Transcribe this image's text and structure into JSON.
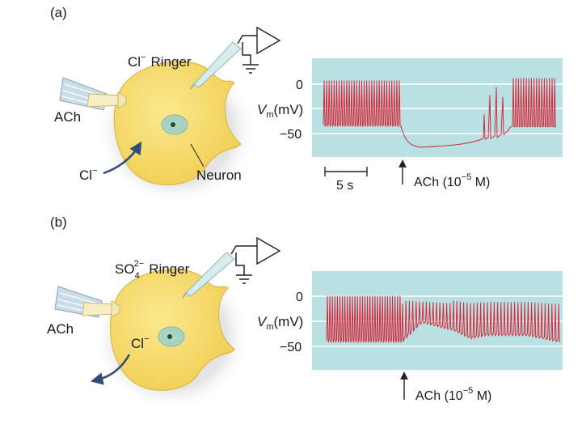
{
  "panels": [
    {
      "letter": "(a)",
      "ringer_main": "Cl",
      "ringer_sup": "−",
      "ringer_sub": "",
      "ringer_suffix": "Ringer",
      "ach_label": "ACh",
      "ion_label": "Cl",
      "ion_sup": "−",
      "neuron_label": "Neuron",
      "ion_direction": "inward",
      "ylabel_v": "V",
      "ylabel_sub": "m",
      "ylabel_unit": "(mV)",
      "ytick_0": "0",
      "ytick_50": "−50",
      "scalebar_label": "5 s",
      "ach_marker_prefix": "ACh (10",
      "ach_marker_sup": "−5",
      "ach_marker_suffix": " M)",
      "trace_color": "#d42a3c",
      "trace_description": "Resting near -40 mV with repetitive spikes to 0 mV; ACh application hyperpolarizes the membrane to about -72 mV and silences firing; slow recovery with spiking resuming later."
    },
    {
      "letter": "(b)",
      "ringer_main": "SO",
      "ringer_sup": "2−",
      "ringer_sub": "4",
      "ringer_suffix": "Ringer",
      "ach_label": "ACh",
      "ion_label": "Cl",
      "ion_sup": "−",
      "neuron_label": "",
      "ion_direction": "outward",
      "ylabel_v": "V",
      "ylabel_sub": "m",
      "ylabel_unit": "(mV)",
      "ytick_0": "0",
      "ytick_50": "−50",
      "scalebar_label": "",
      "ach_marker_prefix": "ACh (10",
      "ach_marker_sup": "−5",
      "ach_marker_suffix": " M)",
      "trace_color": "#d42a3c",
      "trace_description": "Resting near -40 mV with repetitive spikes; ACh application depolarizes the membrane baseline to about -25 mV while spiking continues."
    }
  ],
  "colors": {
    "plot_bg": "#b9e0e2",
    "gridline": "#ffffff",
    "cell_fill": "#f7dc6f",
    "cell_edge": "#d9b94a",
    "halo": "#e8e8e8",
    "nucleus": "#a9d3c3",
    "arrow": "#2f4f7a",
    "pipette": "#c9dde8"
  }
}
